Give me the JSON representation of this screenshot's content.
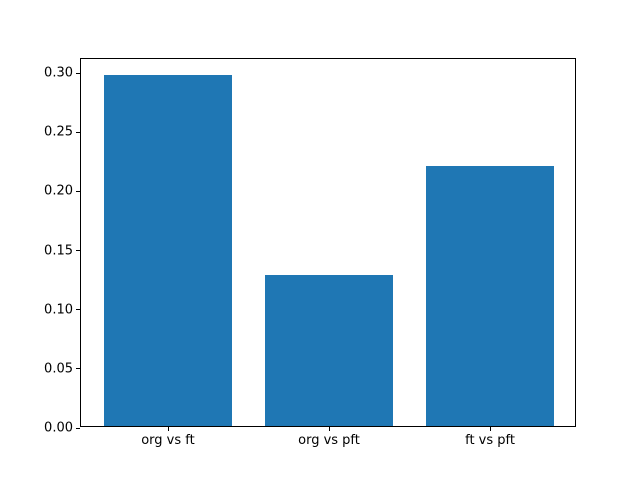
{
  "chart_data": {
    "type": "bar",
    "title": "",
    "xlabel": "",
    "ylabel": "",
    "categories": [
      "org vs ft",
      "org vs pft",
      "ft vs pft"
    ],
    "values": [
      0.297,
      0.128,
      0.22
    ],
    "ylim": [
      0,
      0.312
    ],
    "yticks": [
      0.0,
      0.05,
      0.1,
      0.15,
      0.2,
      0.25,
      0.3
    ],
    "ytick_labels": [
      "0.00",
      "0.05",
      "0.10",
      "0.15",
      "0.20",
      "0.25",
      "0.30"
    ],
    "bar_color": "#1f77b4",
    "axis_color": "#000000",
    "background_color": "#ffffff",
    "grid": false,
    "legend": null
  }
}
